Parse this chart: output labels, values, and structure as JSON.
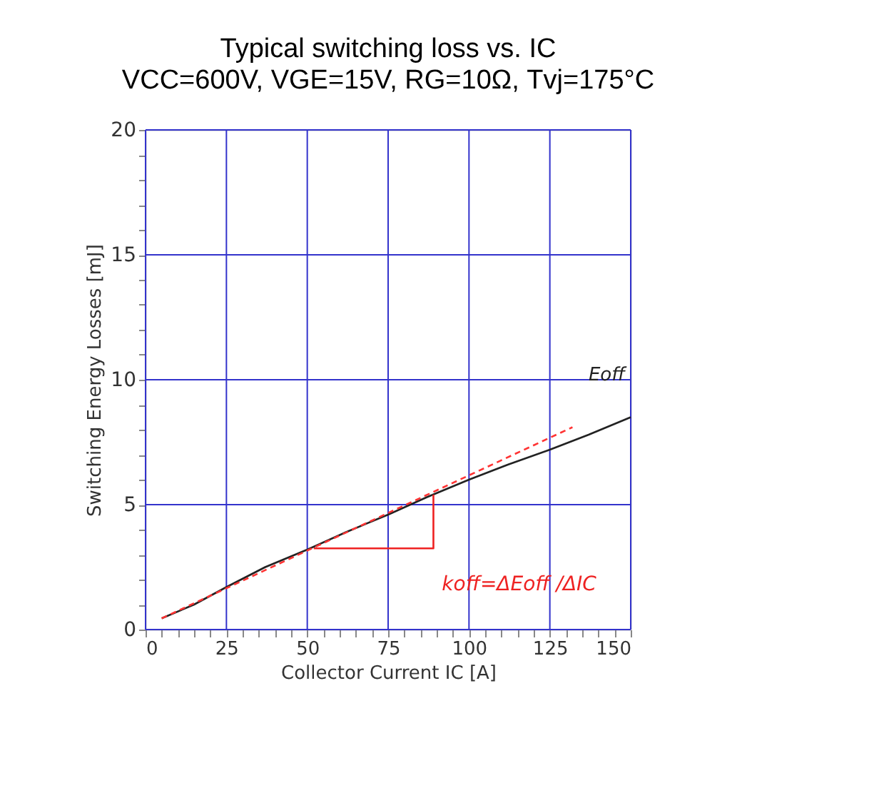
{
  "chart_data": {
    "type": "line",
    "title": "Typical switching loss vs. IC",
    "subtitle": "VCC=600V, VGE=15V, RG=10Ω, Tvj=175°C",
    "xlabel": "Collector Current IC [A]",
    "ylabel": "Switching Energy Losses [mJ]",
    "series": [
      {
        "name": "Eoff",
        "color": "#222222",
        "x": [
          5,
          15,
          25,
          37,
          50,
          62,
          75,
          87,
          100,
          112,
          125,
          137,
          150
        ],
        "values": [
          0.45,
          1.0,
          1.7,
          2.5,
          3.2,
          3.9,
          4.6,
          5.3,
          6.0,
          6.6,
          7.2,
          7.8,
          8.5
        ]
      },
      {
        "color": "#ff3333",
        "line_style": "dashed",
        "x": [
          5,
          132
        ],
        "values": [
          0.45,
          8.1
        ]
      },
      {
        "color": "#ee2222",
        "line_style": "solid",
        "x": [
          52,
          89,
          89
        ],
        "values": [
          3.25,
          3.25,
          5.4
        ]
      }
    ],
    "annotations": [
      "koff=ΔEoff /ΔIC"
    ],
    "xlim": [
      0,
      150
    ],
    "ylim": [
      0,
      20
    ],
    "xticks": [
      0,
      {
        "value": 5,
        "label": null
      },
      {
        "value": 10,
        "label": null
      },
      {
        "value": 15,
        "label": null
      },
      {
        "value": 20,
        "label": null
      },
      25,
      {
        "value": 30,
        "label": null
      },
      {
        "value": 35,
        "label": null
      },
      {
        "value": 40,
        "label": null
      },
      {
        "value": 45,
        "label": null
      },
      50,
      {
        "value": 55,
        "label": null
      },
      {
        "value": 60,
        "label": null
      },
      {
        "value": 65,
        "label": null
      },
      {
        "value": 70,
        "label": null
      },
      75,
      {
        "value": 80,
        "label": null
      },
      {
        "value": 85,
        "label": null
      },
      {
        "value": 90,
        "label": null
      },
      {
        "value": 95,
        "label": null
      },
      100,
      {
        "value": 105,
        "label": null
      },
      {
        "value": 110,
        "label": null
      },
      {
        "value": 115,
        "label": null
      },
      {
        "value": 120,
        "label": null
      },
      125,
      {
        "value": 130,
        "label": null
      },
      {
        "value": 135,
        "label": null
      },
      {
        "value": 140,
        "label": null
      },
      {
        "value": 145,
        "label": null
      },
      150
    ],
    "yticks": [
      0,
      {
        "value": 1,
        "label": null
      },
      {
        "value": 2,
        "label": null
      },
      {
        "value": 3,
        "label": null
      },
      {
        "value": 4,
        "label": null
      },
      5,
      {
        "value": 6,
        "label": null
      },
      {
        "value": 7,
        "label": null
      },
      {
        "value": 8,
        "label": null
      },
      {
        "value": 9,
        "label": null
      },
      10,
      {
        "value": 11,
        "label": null
      },
      {
        "value": 12,
        "label": null
      },
      {
        "value": 13,
        "label": null
      },
      {
        "value": 14,
        "label": null
      },
      15,
      {
        "value": 16,
        "label": null
      },
      {
        "value": 17,
        "label": null
      },
      {
        "value": 18,
        "label": null
      },
      {
        "value": 19,
        "label": null
      },
      20
    ],
    "grid": true,
    "marker": "none"
  }
}
